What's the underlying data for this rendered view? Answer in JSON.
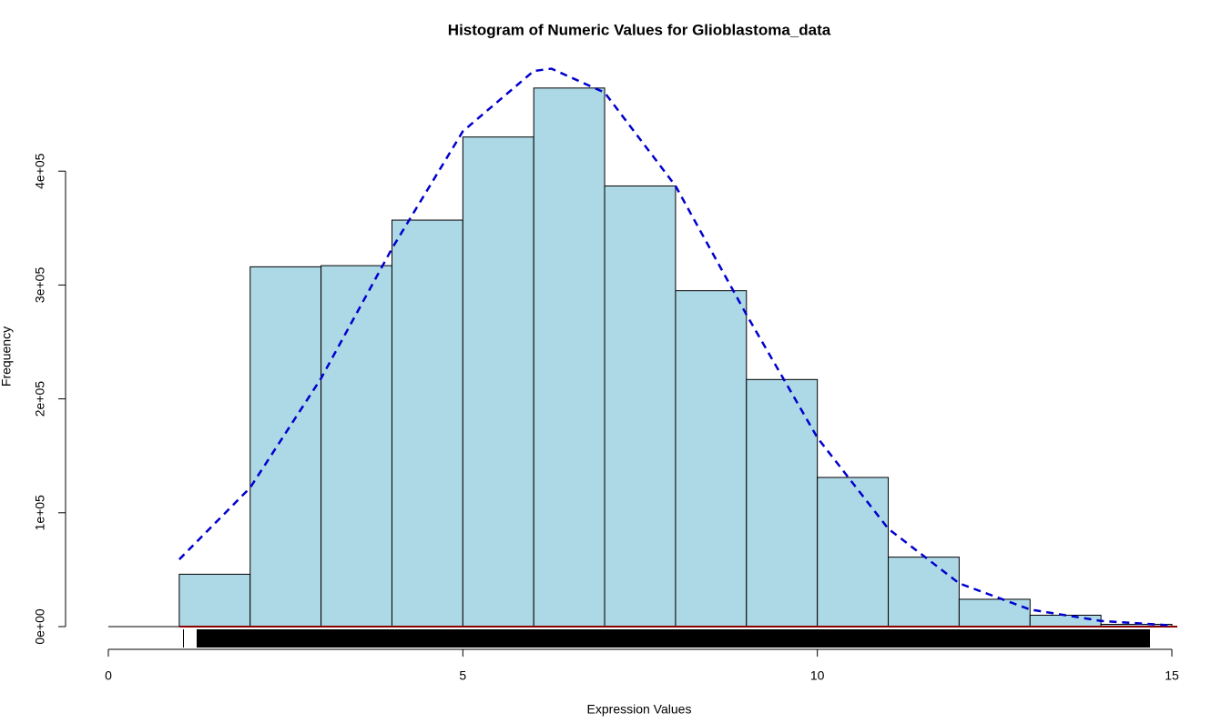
{
  "chart_data": {
    "type": "histogram",
    "title": "Histogram of Numeric Values for Glioblastoma_data",
    "x_label": "Expression Values",
    "y_label": "Frequency",
    "bins": [
      1,
      2,
      3,
      4,
      5,
      6,
      7,
      8,
      9,
      10,
      11,
      12,
      13,
      14,
      15
    ],
    "values": [
      46000,
      316000,
      317000,
      357000,
      430000,
      473000,
      387000,
      295000,
      217000,
      131000,
      61000,
      24000,
      10000,
      2000
    ],
    "color": "#add8e6",
    "curve": {
      "x": [
        1,
        2,
        3,
        4,
        5,
        6,
        6.25,
        7,
        8,
        9,
        10,
        11,
        12,
        13,
        14,
        15
      ],
      "values": [
        59000,
        122000,
        218000,
        332000,
        435000,
        488000,
        490000,
        469000,
        387000,
        274000,
        166000,
        86000,
        38000,
        15000,
        5000,
        1000
      ],
      "color": "#0000cd"
    },
    "xlim": [
      0,
      15
    ],
    "xticks": [
      0,
      5,
      10,
      15
    ],
    "ylim": [
      0,
      500000
    ],
    "yticks": [
      {
        "value": 0,
        "label": "0e+00"
      },
      {
        "value": 100000,
        "label": "1e+05"
      },
      {
        "value": 200000,
        "label": "2e+05"
      },
      {
        "value": 300000,
        "label": "3e+05"
      },
      {
        "value": 400000,
        "label": "4e+05"
      }
    ],
    "grid": false
  }
}
